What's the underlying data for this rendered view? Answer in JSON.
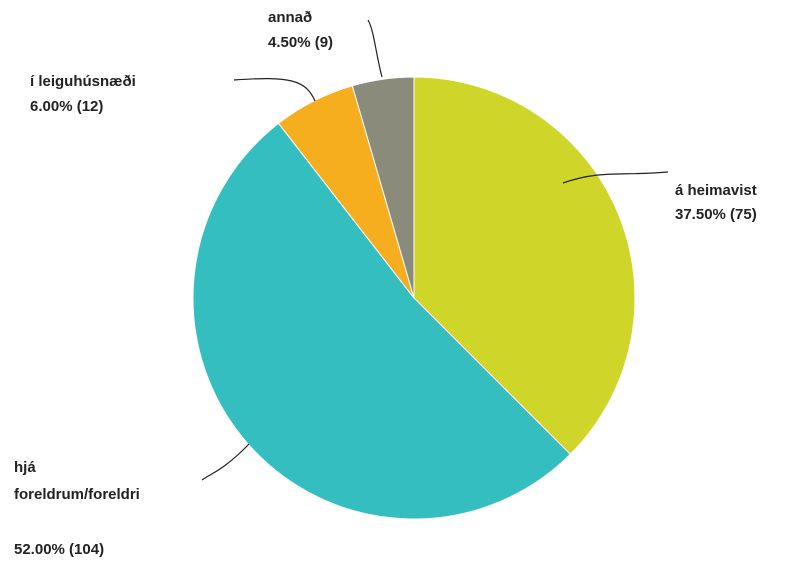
{
  "chart_data": {
    "type": "pie",
    "title": "",
    "slices": [
      {
        "name": "á heimavist",
        "label_lines": [
          "á heimavist"
        ],
        "percent_label": "37.50% (75)",
        "percent": 37.5,
        "count": 75,
        "color": "#CFD529"
      },
      {
        "name": "hjá foreldrum/foreldri",
        "label_lines": [
          "hjá",
          "foreldrum/foreldri"
        ],
        "percent_label": "52.00% (104)",
        "percent": 52.0,
        "count": 104,
        "color": "#34BEC0"
      },
      {
        "name": "í leiguhúsnæði",
        "label_lines": [
          "í leiguhúsnæði"
        ],
        "percent_label": "6.00% (12)",
        "percent": 6.0,
        "count": 12,
        "color": "#F6AE1E"
      },
      {
        "name": "annað",
        "label_lines": [
          "annað"
        ],
        "percent_label": "4.50% (9)",
        "percent": 4.5,
        "count": 9,
        "color": "#8B8B7C"
      }
    ],
    "start_angle": "12 o'clock",
    "direction": "clockwise",
    "legend": "none"
  }
}
